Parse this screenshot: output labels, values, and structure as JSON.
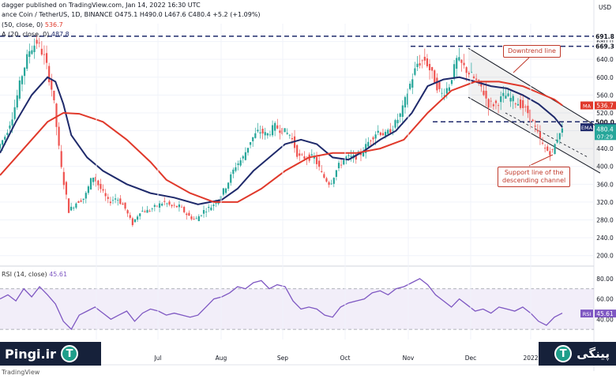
{
  "header": {
    "line1": "dagger published on TradingView.com, Jan 14, 2022 16:30 UTC",
    "line2": "ance Coin / TetherUS, 1D, BINANCE  O475.1  H490.0  L467.6  C480.4  +5.2 (+1.09%)",
    "line3": "(50, close, 0)",
    "line3_value": "536.7",
    "line4": "A (20, close, 0)",
    "line4_value": "487.8"
  },
  "annotations": {
    "downtrend": "Downtrend line",
    "support_l1": "Support line of the",
    "support_l2": "descending channel"
  },
  "brand": {
    "left_name": "Pingi.ir",
    "right_name": "پینگی",
    "tether_glyph": "T",
    "tradingview": "TradingView"
  },
  "colors": {
    "up": "#26a69a",
    "down": "#ef5350",
    "ema": "#1f2a6b",
    "ma": "#e0392b",
    "rsi": "#7e57c2",
    "brand_bg": "#16213a"
  },
  "chart_data": [
    {
      "type": "candlestick",
      "y_axis": {
        "currency": "USD",
        "ylim": [
          180,
          720
        ],
        "ticks": [
          200,
          240,
          280,
          320,
          360,
          400,
          440,
          480,
          520,
          560,
          600,
          640,
          680
        ]
      },
      "x_axis": {
        "months": [
          "Jun",
          "Jul",
          "Aug",
          "Sep",
          "Oct",
          "Nov",
          "Dec",
          "2022"
        ]
      },
      "ohlc_summary": {
        "open": 475.1,
        "high": 490.0,
        "low": 467.6,
        "close": 480.4,
        "change": 5.2,
        "change_pct": "+1.09%"
      },
      "price_path": [
        [
          0,
          440
        ],
        [
          10,
          470
        ],
        [
          20,
          520
        ],
        [
          30,
          600
        ],
        [
          40,
          660
        ],
        [
          50,
          680
        ],
        [
          60,
          640
        ],
        [
          70,
          560
        ],
        [
          80,
          400
        ],
        [
          90,
          300
        ],
        [
          100,
          320
        ],
        [
          110,
          330
        ],
        [
          120,
          380
        ],
        [
          130,
          350
        ],
        [
          140,
          320
        ],
        [
          150,
          330
        ],
        [
          160,
          310
        ],
        [
          170,
          270
        ],
        [
          180,
          300
        ],
        [
          190,
          300
        ],
        [
          200,
          310
        ],
        [
          210,
          320
        ],
        [
          220,
          310
        ],
        [
          230,
          310
        ],
        [
          240,
          290
        ],
        [
          250,
          280
        ],
        [
          260,
          300
        ],
        [
          270,
          310
        ],
        [
          280,
          330
        ],
        [
          290,
          360
        ],
        [
          300,
          400
        ],
        [
          310,
          420
        ],
        [
          320,
          460
        ],
        [
          330,
          480
        ],
        [
          340,
          470
        ],
        [
          350,
          490
        ],
        [
          360,
          480
        ],
        [
          370,
          470
        ],
        [
          380,
          420
        ],
        [
          390,
          420
        ],
        [
          400,
          420
        ],
        [
          410,
          380
        ],
        [
          420,
          360
        ],
        [
          430,
          400
        ],
        [
          440,
          420
        ],
        [
          450,
          420
        ],
        [
          460,
          430
        ],
        [
          470,
          460
        ],
        [
          480,
          480
        ],
        [
          490,
          470
        ],
        [
          500,
          490
        ],
        [
          510,
          520
        ],
        [
          520,
          580
        ],
        [
          530,
          630
        ],
        [
          540,
          640
        ],
        [
          550,
          600
        ],
        [
          560,
          560
        ],
        [
          570,
          580
        ],
        [
          580,
          640
        ],
        [
          590,
          620
        ],
        [
          600,
          600
        ],
        [
          610,
          580
        ],
        [
          620,
          540
        ],
        [
          630,
          540
        ],
        [
          640,
          560
        ],
        [
          650,
          550
        ],
        [
          660,
          540
        ],
        [
          670,
          520
        ],
        [
          680,
          480
        ],
        [
          690,
          440
        ],
        [
          700,
          430
        ],
        [
          710,
          480
        ]
      ],
      "series": [
        {
          "name": "EMA",
          "value": 487.8,
          "points": [
            [
              0,
              430
            ],
            [
              20,
              500
            ],
            [
              40,
              560
            ],
            [
              60,
              600
            ],
            [
              70,
              590
            ],
            [
              80,
              540
            ],
            [
              90,
              470
            ],
            [
              110,
              420
            ],
            [
              130,
              390
            ],
            [
              160,
              360
            ],
            [
              190,
              340
            ],
            [
              220,
              330
            ],
            [
              250,
              315
            ],
            [
              280,
              325
            ],
            [
              300,
              350
            ],
            [
              320,
              390
            ],
            [
              340,
              420
            ],
            [
              360,
              450
            ],
            [
              380,
              460
            ],
            [
              400,
              450
            ],
            [
              420,
              420
            ],
            [
              440,
              415
            ],
            [
              460,
              435
            ],
            [
              480,
              460
            ],
            [
              500,
              480
            ],
            [
              520,
              520
            ],
            [
              540,
              580
            ],
            [
              560,
              595
            ],
            [
              580,
              600
            ],
            [
              600,
              590
            ],
            [
              620,
              580
            ],
            [
              640,
              575
            ],
            [
              660,
              560
            ],
            [
              680,
              540
            ],
            [
              700,
              510
            ],
            [
              710,
              488
            ]
          ]
        },
        {
          "name": "MA",
          "value": 536.7,
          "points": [
            [
              0,
              380
            ],
            [
              20,
              420
            ],
            [
              40,
              460
            ],
            [
              60,
              500
            ],
            [
              80,
              520
            ],
            [
              100,
              518
            ],
            [
              130,
              500
            ],
            [
              160,
              460
            ],
            [
              190,
              410
            ],
            [
              210,
              370
            ],
            [
              240,
              340
            ],
            [
              270,
              320
            ],
            [
              300,
              320
            ],
            [
              330,
              350
            ],
            [
              360,
              390
            ],
            [
              390,
              420
            ],
            [
              420,
              430
            ],
            [
              450,
              430
            ],
            [
              480,
              440
            ],
            [
              510,
              460
            ],
            [
              540,
              520
            ],
            [
              570,
              570
            ],
            [
              600,
              590
            ],
            [
              630,
              590
            ],
            [
              660,
              580
            ],
            [
              680,
              565
            ],
            [
              700,
              550
            ],
            [
              710,
              537
            ]
          ]
        }
      ],
      "levels": [
        {
          "name": "691.8",
          "value": 691.8
        },
        {
          "name": "669.3",
          "value": 669.3
        },
        {
          "name": "500.0",
          "value": 500.0
        }
      ],
      "price_labels": {
        "close": "480.4",
        "countdown": "07:29"
      },
      "channel": {
        "upper": [
          [
            593,
            665
          ],
          [
            760,
            485
          ]
        ],
        "lower": [
          [
            593,
            555
          ],
          [
            760,
            385
          ]
        ],
        "midline": [
          [
            640,
            520
          ],
          [
            745,
            420
          ]
        ]
      }
    },
    {
      "type": "line",
      "title": "RSI (14, close)",
      "current_value": 45.61,
      "value_label": "45.61",
      "ylim": [
        20,
        90
      ],
      "ticks": [
        40,
        60,
        80
      ],
      "bands": [
        30,
        70
      ],
      "points": [
        [
          0,
          60
        ],
        [
          10,
          64
        ],
        [
          20,
          58
        ],
        [
          30,
          70
        ],
        [
          40,
          62
        ],
        [
          50,
          72
        ],
        [
          60,
          64
        ],
        [
          70,
          55
        ],
        [
          80,
          38
        ],
        [
          90,
          30
        ],
        [
          100,
          44
        ],
        [
          110,
          48
        ],
        [
          120,
          52
        ],
        [
          130,
          46
        ],
        [
          140,
          40
        ],
        [
          150,
          44
        ],
        [
          160,
          48
        ],
        [
          170,
          38
        ],
        [
          180,
          46
        ],
        [
          190,
          50
        ],
        [
          200,
          48
        ],
        [
          210,
          44
        ],
        [
          220,
          46
        ],
        [
          230,
          44
        ],
        [
          240,
          42
        ],
        [
          250,
          44
        ],
        [
          260,
          52
        ],
        [
          270,
          60
        ],
        [
          280,
          62
        ],
        [
          290,
          66
        ],
        [
          300,
          72
        ],
        [
          310,
          70
        ],
        [
          320,
          76
        ],
        [
          330,
          78
        ],
        [
          340,
          70
        ],
        [
          350,
          74
        ],
        [
          360,
          72
        ],
        [
          370,
          58
        ],
        [
          380,
          50
        ],
        [
          390,
          52
        ],
        [
          400,
          50
        ],
        [
          410,
          44
        ],
        [
          420,
          42
        ],
        [
          430,
          52
        ],
        [
          440,
          56
        ],
        [
          450,
          58
        ],
        [
          460,
          60
        ],
        [
          470,
          66
        ],
        [
          480,
          68
        ],
        [
          490,
          64
        ],
        [
          500,
          70
        ],
        [
          510,
          72
        ],
        [
          520,
          76
        ],
        [
          530,
          80
        ],
        [
          540,
          74
        ],
        [
          550,
          64
        ],
        [
          560,
          58
        ],
        [
          570,
          52
        ],
        [
          580,
          60
        ],
        [
          590,
          54
        ],
        [
          600,
          48
        ],
        [
          610,
          50
        ],
        [
          620,
          46
        ],
        [
          630,
          52
        ],
        [
          640,
          50
        ],
        [
          650,
          48
        ],
        [
          660,
          52
        ],
        [
          670,
          46
        ],
        [
          680,
          38
        ],
        [
          690,
          34
        ],
        [
          700,
          42
        ],
        [
          710,
          46
        ]
      ]
    }
  ]
}
